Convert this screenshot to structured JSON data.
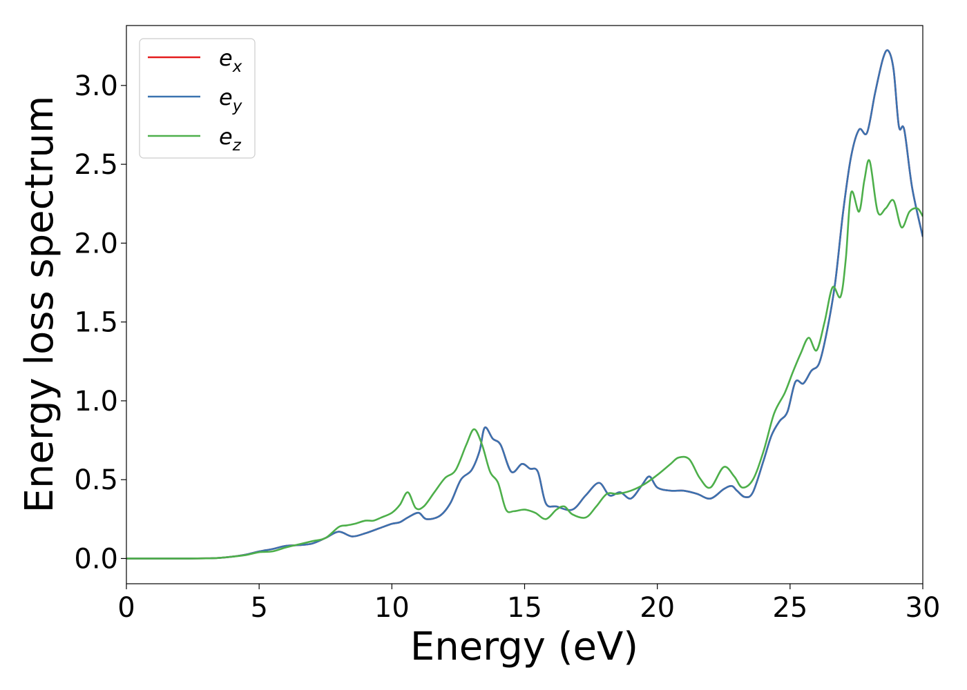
{
  "chart_data": {
    "type": "line",
    "title": "",
    "xlabel": "Energy (eV)",
    "ylabel": "Energy loss spectrum",
    "xlim": [
      0,
      30
    ],
    "ylim": [
      -0.16,
      3.38
    ],
    "xticks": [
      0,
      5,
      10,
      15,
      20,
      25,
      30
    ],
    "yticks": [
      0.0,
      0.5,
      1.0,
      1.5,
      2.0,
      2.5,
      3.0
    ],
    "xtick_labels": [
      "0",
      "5",
      "10",
      "15",
      "20",
      "25",
      "30"
    ],
    "ytick_labels": [
      "0.0",
      "0.5",
      "1.0",
      "1.5",
      "2.0",
      "2.5",
      "3.0"
    ],
    "grid": false,
    "legend_position": "top-left",
    "series": [
      {
        "name": "e_x",
        "legend_base": "e",
        "legend_sub": "x",
        "color": "#e41a1c",
        "x": [
          0,
          1,
          2,
          3,
          3.5,
          4,
          4.5,
          5,
          5.5,
          6,
          6.5,
          7,
          7.5,
          8,
          8.5,
          9,
          9.5,
          10,
          10.3,
          10.6,
          11,
          11.3,
          11.8,
          12.2,
          12.6,
          13.0,
          13.3,
          13.5,
          13.8,
          14.1,
          14.5,
          14.9,
          15.2,
          15.5,
          15.8,
          16.2,
          16.8,
          17.3,
          17.8,
          18.2,
          18.6,
          19.0,
          19.4,
          19.7,
          20.0,
          20.5,
          21.0,
          21.5,
          22.0,
          22.5,
          22.8,
          23.0,
          23.3,
          23.6,
          24.0,
          24.3,
          24.6,
          24.9,
          25.2,
          25.5,
          25.8,
          26.1,
          26.4,
          26.7,
          27.0,
          27.3,
          27.6,
          27.9,
          28.2,
          28.5,
          28.7,
          28.9,
          29.1,
          29.3,
          29.6,
          30.0
        ],
        "y": [
          0,
          0,
          0,
          0.001,
          0.004,
          0.012,
          0.025,
          0.045,
          0.06,
          0.08,
          0.085,
          0.095,
          0.13,
          0.17,
          0.14,
          0.16,
          0.19,
          0.22,
          0.23,
          0.26,
          0.29,
          0.25,
          0.27,
          0.35,
          0.5,
          0.56,
          0.68,
          0.83,
          0.76,
          0.72,
          0.55,
          0.6,
          0.57,
          0.55,
          0.35,
          0.33,
          0.31,
          0.4,
          0.48,
          0.4,
          0.42,
          0.38,
          0.46,
          0.52,
          0.45,
          0.43,
          0.43,
          0.41,
          0.38,
          0.44,
          0.46,
          0.43,
          0.39,
          0.42,
          0.62,
          0.78,
          0.87,
          0.93,
          1.12,
          1.11,
          1.19,
          1.24,
          1.45,
          1.75,
          2.2,
          2.55,
          2.72,
          2.7,
          2.95,
          3.17,
          3.22,
          3.1,
          2.74,
          2.72,
          2.35,
          2.04
        ]
      },
      {
        "name": "e_y",
        "legend_base": "e",
        "legend_sub": "y",
        "color": "#3a72b0",
        "x": [
          0,
          1,
          2,
          3,
          3.5,
          4,
          4.5,
          5,
          5.5,
          6,
          6.5,
          7,
          7.5,
          8,
          8.5,
          9,
          9.5,
          10,
          10.3,
          10.6,
          11,
          11.3,
          11.8,
          12.2,
          12.6,
          13.0,
          13.3,
          13.5,
          13.8,
          14.1,
          14.5,
          14.9,
          15.2,
          15.5,
          15.8,
          16.2,
          16.8,
          17.3,
          17.8,
          18.2,
          18.6,
          19.0,
          19.4,
          19.7,
          20.0,
          20.5,
          21.0,
          21.5,
          22.0,
          22.5,
          22.8,
          23.0,
          23.3,
          23.6,
          24.0,
          24.3,
          24.6,
          24.9,
          25.2,
          25.5,
          25.8,
          26.1,
          26.4,
          26.7,
          27.0,
          27.3,
          27.6,
          27.9,
          28.2,
          28.5,
          28.7,
          28.9,
          29.1,
          29.3,
          29.6,
          30.0
        ],
        "y": [
          0,
          0,
          0,
          0.001,
          0.004,
          0.012,
          0.025,
          0.045,
          0.06,
          0.08,
          0.085,
          0.095,
          0.13,
          0.17,
          0.14,
          0.16,
          0.19,
          0.22,
          0.23,
          0.26,
          0.29,
          0.25,
          0.27,
          0.35,
          0.5,
          0.56,
          0.68,
          0.83,
          0.76,
          0.72,
          0.55,
          0.6,
          0.57,
          0.55,
          0.35,
          0.33,
          0.31,
          0.4,
          0.48,
          0.4,
          0.42,
          0.38,
          0.46,
          0.52,
          0.45,
          0.43,
          0.43,
          0.41,
          0.38,
          0.44,
          0.46,
          0.43,
          0.39,
          0.42,
          0.62,
          0.78,
          0.87,
          0.93,
          1.12,
          1.11,
          1.19,
          1.24,
          1.45,
          1.75,
          2.2,
          2.55,
          2.72,
          2.7,
          2.95,
          3.17,
          3.22,
          3.1,
          2.74,
          2.72,
          2.35,
          2.04
        ]
      },
      {
        "name": "e_z",
        "legend_base": "e",
        "legend_sub": "z",
        "color": "#4daf4a",
        "x": [
          0,
          1,
          2,
          3,
          3.5,
          4,
          4.5,
          5,
          5.5,
          6,
          6.5,
          7,
          7.5,
          8,
          8.3,
          8.6,
          9,
          9.3,
          9.6,
          10,
          10.3,
          10.6,
          10.9,
          11.2,
          11.6,
          12,
          12.4,
          12.8,
          13.1,
          13.4,
          13.7,
          14.0,
          14.3,
          14.6,
          15.0,
          15.4,
          15.8,
          16.2,
          16.5,
          16.8,
          17.3,
          17.7,
          18.1,
          18.5,
          19.0,
          19.5,
          20.0,
          20.5,
          20.8,
          21.2,
          21.6,
          22.0,
          22.5,
          22.9,
          23.2,
          23.6,
          24.0,
          24.4,
          24.8,
          25.1,
          25.4,
          25.7,
          26.0,
          26.3,
          26.6,
          26.9,
          27.1,
          27.3,
          27.6,
          27.8,
          28.0,
          28.3,
          28.6,
          28.9,
          29.2,
          29.5,
          29.8,
          30.0
        ],
        "y": [
          0,
          0,
          0,
          0.001,
          0.004,
          0.012,
          0.022,
          0.04,
          0.045,
          0.07,
          0.09,
          0.11,
          0.13,
          0.2,
          0.21,
          0.22,
          0.24,
          0.24,
          0.26,
          0.29,
          0.34,
          0.42,
          0.32,
          0.33,
          0.42,
          0.51,
          0.56,
          0.72,
          0.82,
          0.72,
          0.55,
          0.48,
          0.31,
          0.3,
          0.31,
          0.29,
          0.25,
          0.31,
          0.33,
          0.28,
          0.26,
          0.33,
          0.41,
          0.41,
          0.43,
          0.47,
          0.53,
          0.6,
          0.64,
          0.63,
          0.51,
          0.45,
          0.58,
          0.52,
          0.45,
          0.5,
          0.68,
          0.92,
          1.05,
          1.18,
          1.3,
          1.4,
          1.32,
          1.5,
          1.72,
          1.66,
          1.9,
          2.32,
          2.2,
          2.4,
          2.52,
          2.2,
          2.22,
          2.27,
          2.1,
          2.2,
          2.22,
          2.17
        ]
      }
    ]
  }
}
